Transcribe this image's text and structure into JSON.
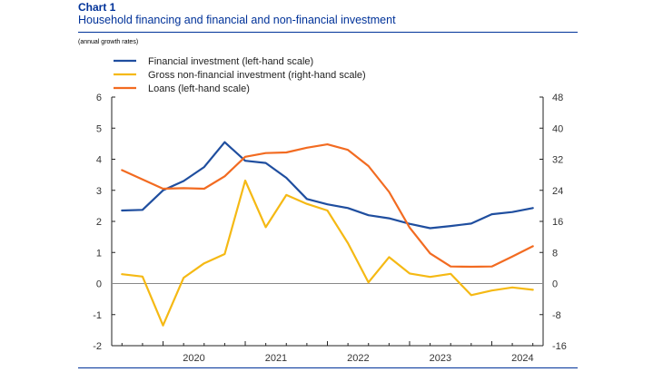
{
  "header": {
    "chart_number": "Chart 1",
    "title": "Household financing and financial and non-financial investment",
    "subtitle": "(annual growth rates)"
  },
  "chart_data": {
    "type": "line",
    "title": "Household financing and financial and non-financial investment",
    "subtitle": "(annual growth rates)",
    "x_ticks": [
      "2020",
      "2021",
      "2022",
      "2023",
      "2024"
    ],
    "x_range": [
      2019.375,
      2024.625
    ],
    "y_left": {
      "min": -2,
      "max": 6,
      "ticks": [
        -2,
        -1,
        0,
        1,
        2,
        3,
        4,
        5,
        6
      ]
    },
    "y_right": {
      "min": -16,
      "max": 48,
      "ticks": [
        -16,
        -8,
        0,
        8,
        16,
        24,
        32,
        40,
        48
      ]
    },
    "grid": false,
    "legend_position": "top-left",
    "series": [
      {
        "name": "Financial investment (left-hand scale)",
        "color": "#1f4e9f",
        "axis": "left",
        "points": [
          [
            2019.5,
            2.35
          ],
          [
            2019.75,
            2.37
          ],
          [
            2020.0,
            3.0
          ],
          [
            2020.25,
            3.3
          ],
          [
            2020.5,
            3.75
          ],
          [
            2020.75,
            4.55
          ],
          [
            2021.0,
            3.95
          ],
          [
            2021.25,
            3.88
          ],
          [
            2021.5,
            3.4
          ],
          [
            2021.75,
            2.72
          ],
          [
            2022.0,
            2.55
          ],
          [
            2022.25,
            2.43
          ],
          [
            2022.5,
            2.2
          ],
          [
            2022.75,
            2.1
          ],
          [
            2023.0,
            1.92
          ],
          [
            2023.25,
            1.78
          ],
          [
            2023.5,
            1.85
          ],
          [
            2023.75,
            1.93
          ],
          [
            2024.0,
            2.23
          ],
          [
            2024.25,
            2.3
          ],
          [
            2024.5,
            2.43
          ]
        ]
      },
      {
        "name": "Gross non-financial investment (right-hand scale)",
        "color": "#f5b914",
        "axis": "right",
        "points": [
          [
            2019.5,
            2.4
          ],
          [
            2019.75,
            1.8
          ],
          [
            2020.0,
            -10.8
          ],
          [
            2020.25,
            1.5
          ],
          [
            2020.5,
            5.2
          ],
          [
            2020.75,
            7.6
          ],
          [
            2021.0,
            26.5
          ],
          [
            2021.25,
            14.5
          ],
          [
            2021.5,
            22.8
          ],
          [
            2021.75,
            20.5
          ],
          [
            2022.0,
            18.8
          ],
          [
            2022.25,
            10.4
          ],
          [
            2022.5,
            0.3
          ],
          [
            2022.75,
            6.8
          ],
          [
            2023.0,
            2.6
          ],
          [
            2023.25,
            1.7
          ],
          [
            2023.5,
            2.5
          ],
          [
            2023.75,
            -3.0
          ],
          [
            2024.0,
            -1.8
          ],
          [
            2024.25,
            -1.0
          ],
          [
            2024.5,
            -1.6
          ]
        ]
      },
      {
        "name": "Loans (left-hand scale)",
        "color": "#f26b21",
        "axis": "left",
        "points": [
          [
            2019.5,
            3.65
          ],
          [
            2019.75,
            3.35
          ],
          [
            2020.0,
            3.05
          ],
          [
            2020.25,
            3.07
          ],
          [
            2020.5,
            3.05
          ],
          [
            2020.75,
            3.45
          ],
          [
            2021.0,
            4.08
          ],
          [
            2021.25,
            4.2
          ],
          [
            2021.5,
            4.22
          ],
          [
            2021.75,
            4.37
          ],
          [
            2022.0,
            4.48
          ],
          [
            2022.25,
            4.3
          ],
          [
            2022.5,
            3.78
          ],
          [
            2022.75,
            2.95
          ],
          [
            2023.0,
            1.8
          ],
          [
            2023.25,
            0.97
          ],
          [
            2023.5,
            0.55
          ],
          [
            2023.75,
            0.54
          ],
          [
            2024.0,
            0.55
          ],
          [
            2024.25,
            0.87
          ],
          [
            2024.5,
            1.2
          ]
        ]
      }
    ]
  }
}
